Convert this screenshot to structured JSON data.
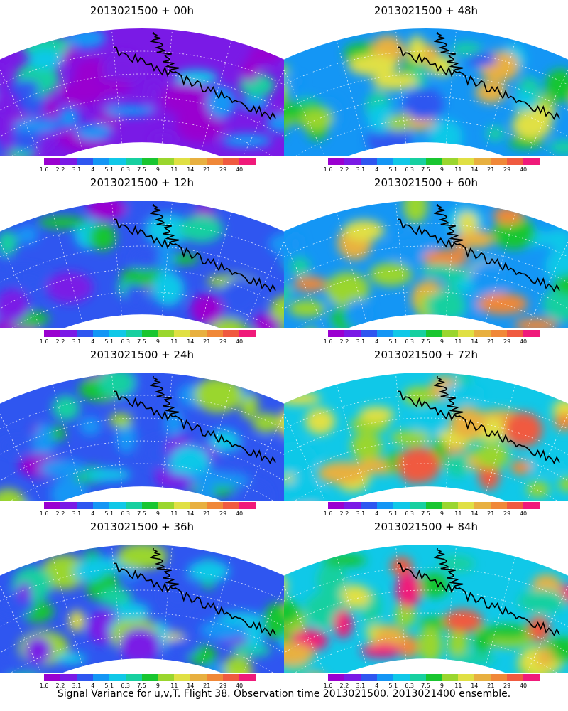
{
  "panels": [
    {
      "title": "2013021500 + 00h",
      "intensity": 0.15
    },
    {
      "title": "2013021500 + 48h",
      "intensity": 0.55
    },
    {
      "title": "2013021500 + 12h",
      "intensity": 0.3
    },
    {
      "title": "2013021500 + 60h",
      "intensity": 0.65
    },
    {
      "title": "2013021500 + 24h",
      "intensity": 0.4
    },
    {
      "title": "2013021500 + 72h",
      "intensity": 0.75
    },
    {
      "title": "2013021500 + 36h",
      "intensity": 0.48
    },
    {
      "title": "2013021500 + 84h",
      "intensity": 0.85
    }
  ],
  "colorbar": {
    "colors": [
      "#9a00d0",
      "#7a1ae6",
      "#2f56f0",
      "#1496f5",
      "#10c8e8",
      "#17d0a0",
      "#19c630",
      "#9ad62e",
      "#e0e044",
      "#e8b040",
      "#f08838",
      "#f05a40",
      "#f01a7a"
    ],
    "ticks": [
      "1.6",
      "2.2",
      "3.1",
      "4",
      "5.1",
      "6.3",
      "7.5",
      "9",
      "11",
      "14",
      "21",
      "29",
      "40"
    ]
  },
  "caption": "Signal Variance for u,v,T. Flight 38. Observation time 2013021500. 2013021400 ensemble."
}
